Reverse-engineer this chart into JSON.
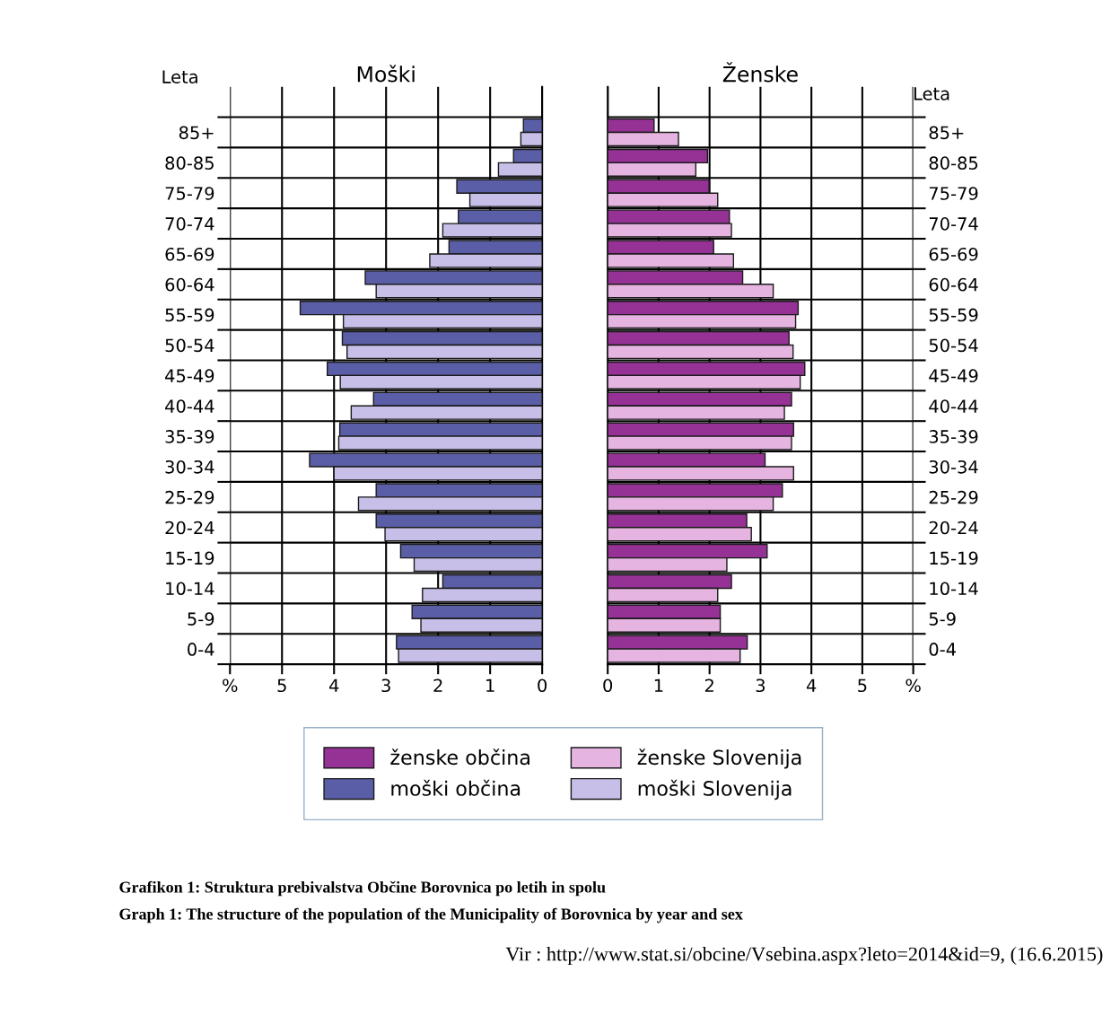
{
  "chart_data": [
    {
      "type": "bar",
      "orientation": "horizontal",
      "title": "Moški",
      "ylabel": "Leta",
      "categories": [
        "85+",
        "80-85",
        "75-79",
        "70-74",
        "65-69",
        "60-64",
        "55-59",
        "50-54",
        "45-49",
        "40-44",
        "35-39",
        "30-34",
        "25-29",
        "20-24",
        "15-19",
        "10-14",
        "5-9",
        "0-4"
      ],
      "series": [
        {
          "name": "moški občina",
          "color": "#5a5ea6",
          "values": [
            0.36,
            0.55,
            1.64,
            1.61,
            1.79,
            3.4,
            4.65,
            3.84,
            4.13,
            3.24,
            3.89,
            4.47,
            3.19,
            3.19,
            2.72,
            1.91,
            2.5,
            2.8
          ]
        },
        {
          "name": "moški Slovenija",
          "color": "#c8bfe8",
          "values": [
            0.41,
            0.84,
            1.39,
            1.91,
            2.16,
            3.19,
            3.82,
            3.75,
            3.88,
            3.67,
            3.91,
            4.0,
            3.53,
            3.02,
            2.46,
            2.3,
            2.33,
            2.76
          ]
        }
      ],
      "xlim": [
        6,
        0
      ],
      "xticks": [
        {
          "value": 6,
          "label": "%"
        },
        5,
        4,
        3,
        2,
        1,
        0
      ],
      "grid": true,
      "legend": "bottom",
      "annotations": [
        "Grafikon 1: Struktura prebivalstva Občine Borovnica po letih in spolu",
        "Graph 1: The structure of the population of the Municipality of Borovnica by year and sex",
        "Vir : http://www.stat.si/obcine/Vsebina.aspx?leto=2014&id=9, (16.6.2015)"
      ]
    },
    {
      "type": "bar",
      "orientation": "horizontal",
      "title": "Ženske",
      "ylabel": "Leta",
      "categories": [
        "85+",
        "80-85",
        "75-79",
        "70-74",
        "65-69",
        "60-64",
        "55-59",
        "50-54",
        "45-49",
        "40-44",
        "35-39",
        "30-34",
        "25-29",
        "20-24",
        "15-19",
        "10-14",
        "5-9",
        "0-4"
      ],
      "series": [
        {
          "name": "ženske občina",
          "color": "#963296",
          "values": [
            0.91,
            1.96,
            1.99,
            2.39,
            2.08,
            2.65,
            3.74,
            3.56,
            3.87,
            3.61,
            3.65,
            3.09,
            3.43,
            2.73,
            3.13,
            2.43,
            2.21,
            2.74
          ]
        },
        {
          "name": "ženske Slovenija",
          "color": "#e6b4e1",
          "values": [
            1.39,
            1.73,
            2.16,
            2.43,
            2.47,
            3.25,
            3.69,
            3.64,
            3.78,
            3.47,
            3.61,
            3.65,
            3.25,
            2.82,
            2.34,
            2.16,
            2.21,
            2.6
          ]
        }
      ],
      "xlim": [
        0,
        6
      ],
      "xticks": [
        0,
        1,
        2,
        3,
        4,
        5,
        {
          "value": 6,
          "label": "%"
        }
      ],
      "grid": true,
      "legend": "bottom"
    }
  ]
}
